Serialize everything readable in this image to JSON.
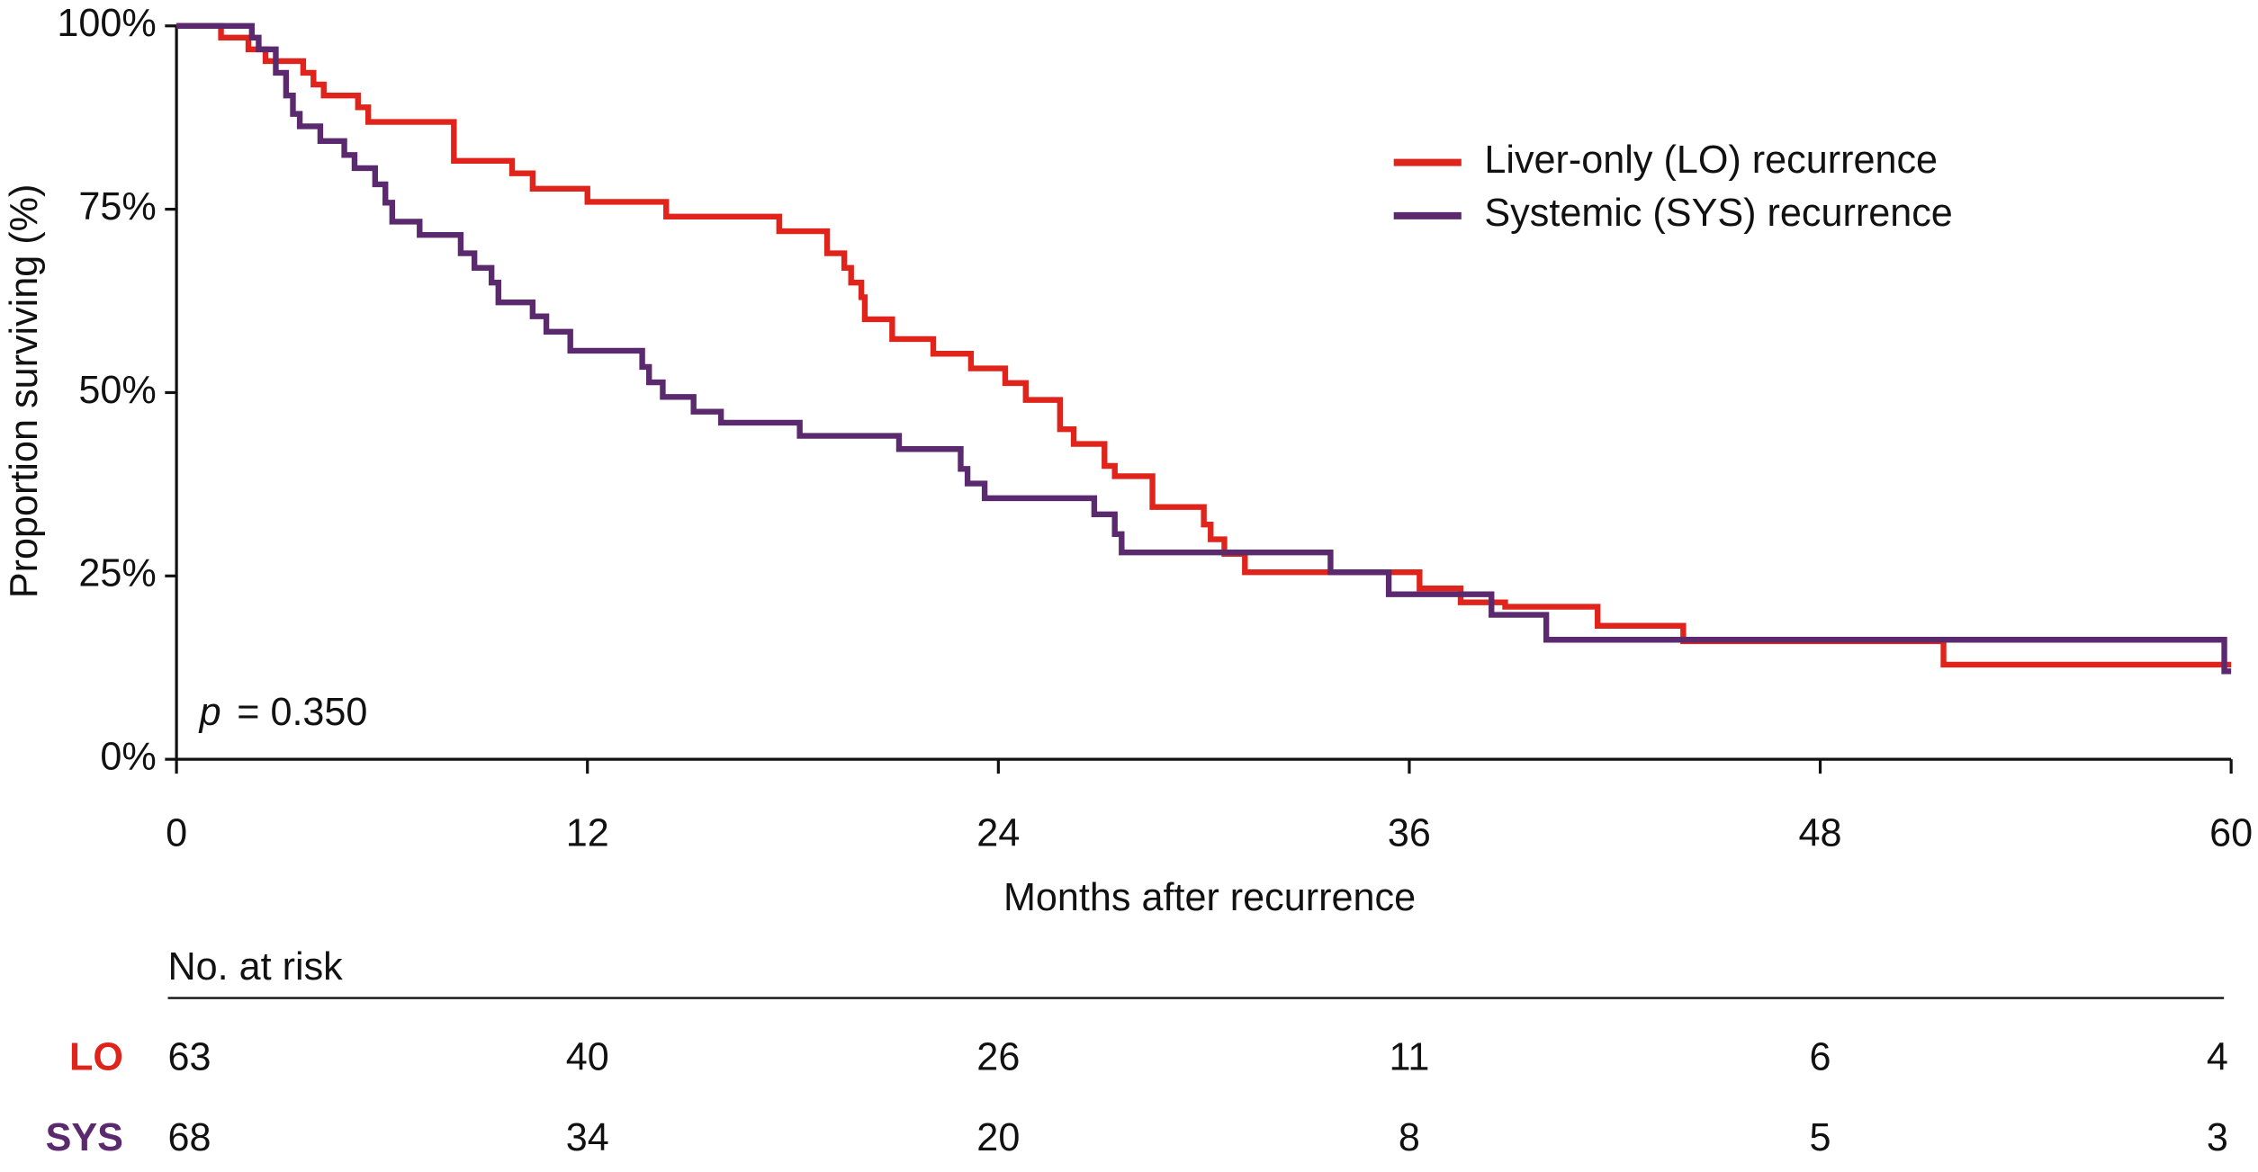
{
  "chart_data": {
    "type": "step",
    "xlabel": "Months after recurrence",
    "ylabel": "Proportion surviving (%)",
    "xlim": [
      0,
      60
    ],
    "ylim": [
      0,
      100
    ],
    "xticks": [
      0,
      12,
      24,
      36,
      48,
      60
    ],
    "yticks": [
      {
        "value": 0,
        "label": "0%"
      },
      {
        "value": 25,
        "label": "25%"
      },
      {
        "value": 50,
        "label": "50%"
      },
      {
        "value": 75,
        "label": "75%"
      },
      {
        "value": 100,
        "label": "100%"
      }
    ],
    "legend": "upper right",
    "annotation": {
      "symbol": "p",
      "text": "= 0.350"
    },
    "series": [
      {
        "name": "Liver-only (LO) recurrence",
        "color": "#e0241b",
        "x": [
          0,
          1.3,
          2.1,
          2.6,
          3.7,
          4.0,
          4.3,
          5.3,
          5.6,
          8.1,
          9.8,
          10.4,
          12,
          14.3,
          17.6,
          19,
          19.5,
          19.7,
          20,
          20.1,
          20.9,
          22.1,
          23.2,
          24.2,
          24.8,
          25.8,
          26.2,
          27.1,
          27.4,
          28.5,
          30,
          30.2,
          30.6,
          31.2,
          36.3,
          37.5,
          38.8,
          41.5,
          44,
          51.6,
          60
        ],
        "values": [
          100,
          98.4,
          96.8,
          95.2,
          93.6,
          92,
          90.5,
          88.9,
          86.9,
          81.6,
          79.9,
          77.8,
          76,
          74,
          72,
          69,
          67,
          65,
          63,
          60,
          57.3,
          55.3,
          53.3,
          51.3,
          49,
          45,
          43,
          40,
          38.6,
          34.4,
          32,
          30,
          28,
          25.5,
          23.3,
          21.4,
          20.8,
          18.2,
          16.1,
          12.9,
          12.9
        ]
      },
      {
        "name": "Systemic (SYS) recurrence",
        "color": "#5b2a6e",
        "x": [
          0,
          2.2,
          2.4,
          2.9,
          3.2,
          3.4,
          3.6,
          4.2,
          4.9,
          5.2,
          5.8,
          6.1,
          6.3,
          7.1,
          8.3,
          8.7,
          9.2,
          9.4,
          10.4,
          10.8,
          11.5,
          13.6,
          13.8,
          14.2,
          15.1,
          15.9,
          18.2,
          21.1,
          22.9,
          23.1,
          23.6,
          26.8,
          27.4,
          27.6,
          33.7,
          35.4,
          38.4,
          40,
          59.8,
          60
        ],
        "values": [
          100,
          98.4,
          96.8,
          93.6,
          90.5,
          88,
          86.3,
          84.3,
          82.4,
          80.6,
          78.4,
          75.9,
          73.3,
          71.5,
          69,
          67,
          65,
          62.3,
          60.4,
          58.3,
          55.7,
          53.5,
          51.4,
          49.4,
          47.4,
          45.9,
          44.1,
          42.3,
          39.6,
          37.6,
          35.6,
          33.4,
          30.7,
          28.2,
          25.5,
          22.5,
          19.7,
          16.3,
          12,
          12
        ]
      }
    ],
    "risk_table": {
      "title": "No. at risk",
      "rows": [
        {
          "label": "LO",
          "color": "#e0241b",
          "values": [
            63,
            40,
            26,
            11,
            6,
            4
          ]
        },
        {
          "label": "SYS",
          "color": "#5b2a6e",
          "values": [
            68,
            34,
            20,
            8,
            5,
            3
          ]
        }
      ]
    }
  }
}
